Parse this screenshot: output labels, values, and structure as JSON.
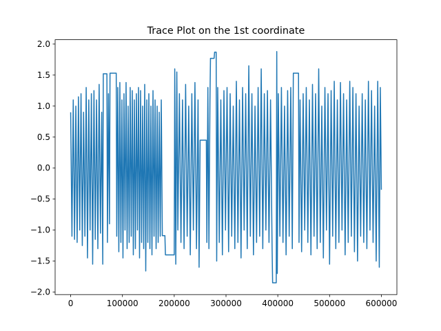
{
  "chart_data": {
    "type": "line",
    "title": "Trace Plot on the 1st coordinate",
    "color": "#1f77b4",
    "x": [
      0,
      2500,
      5000,
      7500,
      10000,
      12500,
      15000,
      17500,
      20000,
      22500,
      25000,
      27500,
      30000,
      32500,
      35000,
      37500,
      40000,
      42500,
      45000,
      47500,
      50000,
      52500,
      55000,
      57500,
      60000,
      62000,
      63000,
      70000,
      71000,
      73000,
      75000,
      76000,
      88000,
      89000,
      91000,
      93000,
      95000,
      97000,
      99000,
      101000,
      103000,
      105000,
      107000,
      109000,
      111000,
      113000,
      115000,
      117000,
      119000,
      121000,
      123000,
      125000,
      127000,
      129000,
      131000,
      133000,
      135000,
      137000,
      139000,
      141000,
      143000,
      145000,
      147000,
      149000,
      151000,
      153000,
      155000,
      157000,
      159000,
      161000,
      163000,
      165000,
      167000,
      169000,
      171000,
      173000,
      175000,
      177000,
      182000,
      183000,
      200000,
      201000,
      203000,
      205000,
      207000,
      210000,
      213000,
      216000,
      219000,
      222000,
      225000,
      228000,
      231000,
      234000,
      237000,
      240000,
      243000,
      246000,
      248000,
      250000,
      262000,
      263000,
      265000,
      267000,
      269000,
      270000,
      277000,
      278000,
      281000,
      282000,
      284000,
      287000,
      290000,
      293000,
      296000,
      299000,
      302000,
      305000,
      308000,
      311000,
      314000,
      317000,
      320000,
      323000,
      326000,
      329000,
      332000,
      335000,
      338000,
      341000,
      344000,
      347000,
      350000,
      353000,
      356000,
      359000,
      362000,
      365000,
      368000,
      371000,
      374000,
      377000,
      380000,
      383000,
      386000,
      389000,
      390000,
      397000,
      398000,
      399000,
      401000,
      404000,
      407000,
      410000,
      413000,
      416000,
      419000,
      422000,
      425000,
      428000,
      430000,
      440000,
      441000,
      443000,
      446000,
      449000,
      452000,
      455000,
      458000,
      461000,
      464000,
      467000,
      470000,
      473000,
      476000,
      479000,
      482000,
      485000,
      488000,
      491000,
      494000,
      497000,
      500000,
      503000,
      506000,
      509000,
      512000,
      515000,
      518000,
      521000,
      524000,
      527000,
      530000,
      533000,
      536000,
      539000,
      542000,
      545000,
      548000,
      551000,
      554000,
      557000,
      560000,
      563000,
      566000,
      569000,
      572000,
      575000,
      578000,
      581000,
      584000,
      587000,
      590000,
      593000,
      596000,
      598000,
      600000
    ],
    "values": [
      0.9,
      -1.1,
      1.1,
      -1.15,
      1.0,
      -1.2,
      1.15,
      -1.0,
      1.2,
      -1.25,
      0.9,
      -1.1,
      1.3,
      -1.45,
      1.1,
      -1.0,
      1.2,
      -1.55,
      1.25,
      -1.15,
      1.1,
      -1.3,
      1.35,
      -1.05,
      0.9,
      -1.55,
      1.52,
      1.52,
      -1.2,
      1.2,
      -0.9,
      1.53,
      1.53,
      -1.1,
      1.3,
      -1.35,
      1.38,
      -1.2,
      1.1,
      -1.45,
      1.2,
      -1.0,
      1.38,
      -1.3,
      1.0,
      -1.2,
      1.3,
      -1.1,
      1.25,
      -1.4,
      1.1,
      -1.3,
      1.2,
      -1.0,
      1.3,
      -1.45,
      1.25,
      -1.2,
      1.0,
      -1.3,
      1.35,
      -1.66,
      1.1,
      -1.2,
      1.2,
      -1.3,
      1.0,
      -1.4,
      1.25,
      -1.1,
      1.1,
      -1.3,
      1.0,
      -1.2,
      0.9,
      -1.1,
      1.1,
      -1.09,
      -1.09,
      -1.4,
      -1.4,
      1.6,
      -1.55,
      1.55,
      -1.0,
      1.2,
      -1.2,
      1.1,
      -1.3,
      1.35,
      -1.1,
      1.0,
      -1.4,
      1.2,
      -1.0,
      1.38,
      -1.3,
      1.1,
      -1.6,
      0.45,
      0.45,
      -1.2,
      1.3,
      -1.3,
      1.1,
      1.77,
      1.77,
      1.87,
      1.87,
      -1.5,
      1.3,
      -1.2,
      1.1,
      -1.4,
      1.25,
      -1.0,
      1.3,
      -1.35,
      1.2,
      -1.1,
      1.0,
      -1.3,
      1.4,
      -1.2,
      1.1,
      -1.45,
      1.3,
      -1.0,
      1.2,
      -1.3,
      1.65,
      -1.1,
      1.2,
      -1.4,
      1.0,
      -1.2,
      1.3,
      -1.1,
      1.6,
      -1.3,
      1.2,
      -1.0,
      1.25,
      -1.2,
      1.1,
      -1.3,
      -1.85,
      -1.85,
      1.88,
      -1.7,
      1.2,
      -1.1,
      1.3,
      -1.2,
      1.0,
      -1.4,
      1.25,
      -1.1,
      1.3,
      -1.3,
      1.53,
      1.53,
      -1.2,
      1.1,
      -1.35,
      1.2,
      -1.0,
      1.3,
      -1.2,
      1.1,
      -1.4,
      1.35,
      -1.1,
      1.2,
      -1.3,
      1.6,
      -1.2,
      1.0,
      -1.45,
      1.3,
      -1.0,
      1.2,
      -1.55,
      1.25,
      -1.1,
      1.4,
      -1.3,
      1.1,
      -1.2,
      1.38,
      -1.0,
      1.2,
      -1.4,
      1.1,
      -1.2,
      1.4,
      -1.1,
      1.3,
      -1.35,
      1.2,
      -1.5,
      1.0,
      -1.1,
      1.2,
      -1.2,
      1.1,
      -1.3,
      1.4,
      -1.0,
      1.25,
      -1.2,
      1.0,
      -1.5,
      1.4,
      -1.6,
      1.3,
      -0.35
    ],
    "xlim": [
      -30000,
      630000
    ],
    "xticks": [
      0,
      100000,
      200000,
      300000,
      400000,
      500000,
      600000
    ],
    "ylim": [
      -2.04,
      2.07
    ],
    "yticks": [
      {
        "value": -2,
        "label": "−2.0"
      },
      {
        "value": -1.5,
        "label": "−1.5"
      },
      {
        "value": -1,
        "label": "−1.0"
      },
      {
        "value": -0.5,
        "label": "−0.5"
      },
      {
        "value": 0,
        "label": "0.0"
      },
      {
        "value": 0.5,
        "label": "0.5"
      },
      {
        "value": 1,
        "label": "1.0"
      },
      {
        "value": 1.5,
        "label": "1.5"
      },
      {
        "value": 2,
        "label": "2.0"
      }
    ]
  }
}
